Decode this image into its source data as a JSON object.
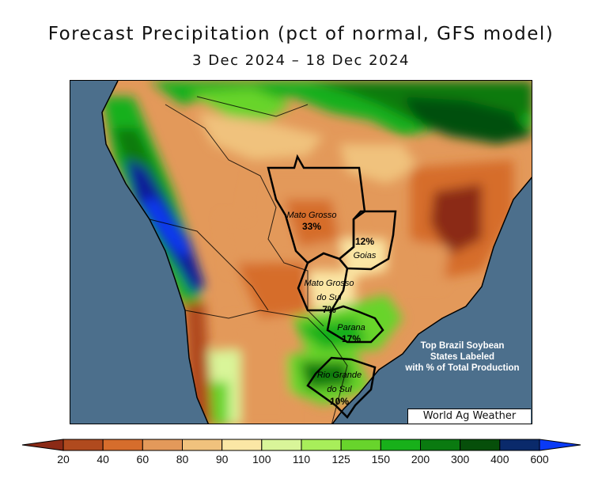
{
  "title": "Forecast Precipitation (pct of normal, GFS model)",
  "date_range": "3 Dec 2024 – 18 Dec 2024",
  "states": [
    {
      "name": "Mato Grosso",
      "pct": "33%"
    },
    {
      "name": "Goias",
      "pct": "12%"
    },
    {
      "name": "Mato Grosso do Sul",
      "name_line1": "Mato Grosso",
      "name_line2": "do Sul",
      "pct": "7%"
    },
    {
      "name": "Parana",
      "pct": "17%"
    },
    {
      "name": "Rio Grande do Sul",
      "name_line1": "Rio Grande",
      "name_line2": "do Sul",
      "pct": "10%"
    }
  ],
  "info_box": {
    "line1": "Top Brazil Soybean",
    "line2": "States Labeled",
    "line3": "with % of Total Production"
  },
  "credit": "World Ag Weather",
  "legend": {
    "ticks": [
      "20",
      "40",
      "60",
      "80",
      "90",
      "100",
      "110",
      "125",
      "150",
      "200",
      "300",
      "400",
      "600"
    ],
    "colors": [
      "#8b2a16",
      "#b04a1e",
      "#d66d2c",
      "#e3995a",
      "#f0c27d",
      "#fbe7a5",
      "#d9f599",
      "#a8ee5a",
      "#68d42c",
      "#18b01a",
      "#0a7a10",
      "#064f0a",
      "#0a2a6b",
      "#0a1a9a",
      "#0a3af5"
    ]
  },
  "colors": {
    "ocean": "#4c6f8c",
    "state_border": "#000000"
  }
}
